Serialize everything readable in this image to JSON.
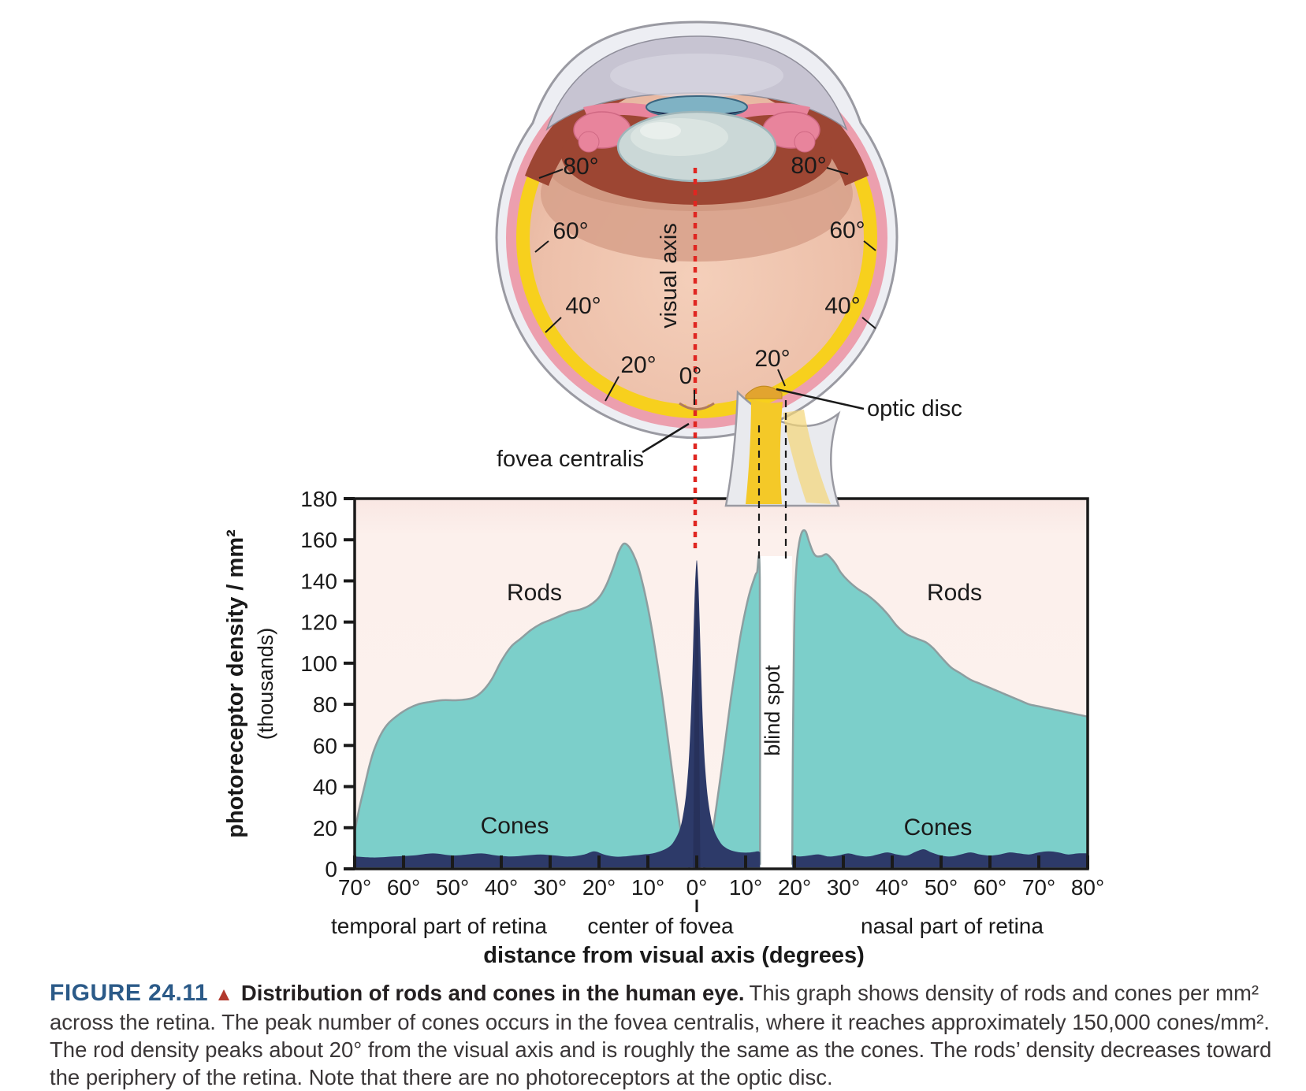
{
  "eye": {
    "visual_axis_label": "visual axis",
    "fovea_label": "fovea centralis",
    "optic_disc_label": "optic disc",
    "degree_labels_left": [
      "80°",
      "60°",
      "40°",
      "20°"
    ],
    "degree_labels_right": [
      "80°",
      "60°",
      "40°",
      "20°"
    ],
    "zero_label": "0°"
  },
  "chart": {
    "y_axis_title": "photoreceptor density / mm²",
    "y_axis_subtitle": "(thousands)",
    "x_axis_title": "distance from visual axis (degrees)",
    "labels": {
      "rods": "Rods",
      "cones": "Cones",
      "blind_spot": "blind spot",
      "temporal": "temporal part of retina",
      "fovea_center": "center of fovea",
      "nasal": "nasal part of retina"
    }
  },
  "chart_data": {
    "type": "area",
    "title": "",
    "xlabel": "distance from visual axis (degrees)",
    "ylabel": "photoreceptor density / mm² (thousands)",
    "x_convention": "degrees; negative = temporal part of retina, positive = nasal part of retina",
    "x_domain_deg": [
      -70,
      80
    ],
    "ylim": [
      0,
      180
    ],
    "grid": false,
    "legend": "inline labels",
    "blind_spot_deg": [
      13,
      19.5
    ],
    "cone_peak": {
      "deg": 0,
      "value_thousands": 150
    },
    "rod_peak_temporal": {
      "deg": -15,
      "value_thousands": 158
    },
    "rod_peak_nasal": {
      "deg": 21.5,
      "value_thousands": 164
    },
    "colors": {
      "rods_fill": "#7ccfca",
      "rods_stroke": "#8d9ea0",
      "cones_fill": "#2d3a69",
      "cone_core_fill": "#27315b",
      "plot_bg_top": "#f9e7e3",
      "plot_bg": "#fcf1ed",
      "blind_spot_band": "#ffffff",
      "visual_axis_line": "#e02621",
      "dashed_guides": "#1a1a1a"
    },
    "axes": {
      "y_ticks": [
        {
          "v": 180,
          "label": "180"
        },
        {
          "v": 160,
          "label": "160"
        },
        {
          "v": 140,
          "label": "140"
        },
        {
          "v": 120,
          "label": "120"
        },
        {
          "v": 100,
          "label": "100"
        },
        {
          "v": 80,
          "label": "80"
        },
        {
          "v": 60,
          "label": "60"
        },
        {
          "v": 40,
          "label": "40"
        },
        {
          "v": 20,
          "label": "20"
        },
        {
          "v": 0,
          "label": "0"
        }
      ],
      "x_ticks": [
        {
          "deg": -70,
          "label": "70°"
        },
        {
          "deg": -60,
          "label": "60°"
        },
        {
          "deg": -50,
          "label": "50°"
        },
        {
          "deg": -40,
          "label": "40°"
        },
        {
          "deg": -30,
          "label": "30°"
        },
        {
          "deg": -20,
          "label": "20°"
        },
        {
          "deg": -10,
          "label": "10°"
        },
        {
          "deg": 0,
          "label": "0°"
        },
        {
          "deg": 10,
          "label": "10°"
        },
        {
          "deg": 20,
          "label": "20°"
        },
        {
          "deg": 30,
          "label": "30°"
        },
        {
          "deg": 40,
          "label": "40°"
        },
        {
          "deg": 50,
          "label": "50°"
        },
        {
          "deg": 60,
          "label": "60°"
        },
        {
          "deg": 70,
          "label": "70°"
        },
        {
          "deg": 80,
          "label": "80°"
        }
      ]
    },
    "series": [
      {
        "name": "Rods (temporal side)",
        "color": "#7ccfca",
        "stroke": "#8d9ea0",
        "points": [
          [
            -70,
            18
          ],
          [
            -69,
            30
          ],
          [
            -68,
            40
          ],
          [
            -67,
            50
          ],
          [
            -66,
            58
          ],
          [
            -64.5,
            66
          ],
          [
            -63,
            71
          ],
          [
            -61,
            75
          ],
          [
            -59,
            78
          ],
          [
            -57,
            80
          ],
          [
            -55,
            81
          ],
          [
            -52,
            82
          ],
          [
            -49,
            82
          ],
          [
            -46,
            83
          ],
          [
            -44,
            86
          ],
          [
            -42,
            92
          ],
          [
            -40,
            101
          ],
          [
            -38,
            108
          ],
          [
            -36,
            112
          ],
          [
            -34,
            116
          ],
          [
            -32,
            119
          ],
          [
            -30,
            121
          ],
          [
            -28,
            123
          ],
          [
            -26,
            125
          ],
          [
            -24,
            126
          ],
          [
            -22,
            128
          ],
          [
            -20,
            132
          ],
          [
            -18.5,
            138
          ],
          [
            -17,
            147
          ],
          [
            -16,
            154
          ],
          [
            -15,
            158
          ],
          [
            -14,
            157
          ],
          [
            -13,
            153
          ],
          [
            -12,
            147
          ],
          [
            -11,
            138
          ],
          [
            -10,
            127
          ],
          [
            -9,
            114
          ],
          [
            -8,
            99
          ],
          [
            -7,
            83
          ],
          [
            -6,
            65
          ],
          [
            -5,
            47
          ],
          [
            -4,
            30
          ],
          [
            -3.2,
            17
          ],
          [
            -2.5,
            8
          ],
          [
            -1.9,
            3
          ],
          [
            -1.4,
            0
          ]
        ]
      },
      {
        "name": "Rods (nasal side, inside blind spot)",
        "color": "#7ccfca",
        "stroke": "#8d9ea0",
        "points": [
          [
            1.4,
            0
          ],
          [
            1.9,
            3
          ],
          [
            2.5,
            8
          ],
          [
            3.2,
            17
          ],
          [
            4,
            30
          ],
          [
            5,
            47
          ],
          [
            6,
            65
          ],
          [
            7,
            83
          ],
          [
            8,
            99
          ],
          [
            9,
            114
          ],
          [
            10,
            126
          ],
          [
            10.8,
            134
          ],
          [
            11.6,
            140
          ],
          [
            12.3,
            144
          ],
          [
            12.9,
            141
          ],
          [
            12.95,
            2
          ]
        ]
      },
      {
        "name": "Rods (nasal side, beyond blind spot)",
        "color": "#7ccfca",
        "stroke": "#8d9ea0",
        "points": [
          [
            19.55,
            2
          ],
          [
            19.65,
            50
          ],
          [
            19.85,
            100
          ],
          [
            20.1,
            132
          ],
          [
            20.5,
            150
          ],
          [
            21,
            159
          ],
          [
            21.6,
            164
          ],
          [
            22.3,
            164
          ],
          [
            23,
            159
          ],
          [
            23.8,
            154
          ],
          [
            24.5,
            152
          ],
          [
            25.5,
            152
          ],
          [
            26.5,
            153
          ],
          [
            27.5,
            151
          ],
          [
            28.5,
            148
          ],
          [
            29.5,
            144
          ],
          [
            31,
            140
          ],
          [
            33,
            136
          ],
          [
            35,
            133
          ],
          [
            37,
            129
          ],
          [
            39,
            124
          ],
          [
            41,
            118
          ],
          [
            43,
            114
          ],
          [
            45,
            112
          ],
          [
            47,
            110
          ],
          [
            48.5,
            107
          ],
          [
            50,
            103
          ],
          [
            52,
            98
          ],
          [
            54,
            95
          ],
          [
            56,
            92
          ],
          [
            58,
            90
          ],
          [
            60,
            88
          ],
          [
            62,
            86
          ],
          [
            64,
            84
          ],
          [
            66,
            82
          ],
          [
            68,
            80
          ],
          [
            70,
            79
          ],
          [
            72,
            78
          ],
          [
            74,
            77
          ],
          [
            76,
            76
          ],
          [
            78,
            75
          ],
          [
            80,
            74
          ]
        ]
      },
      {
        "name": "Cones (temporal + fovea, up to blind spot)",
        "color": "#2d3a69",
        "points": [
          [
            -70,
            6
          ],
          [
            -66,
            5.5
          ],
          [
            -62,
            6
          ],
          [
            -58,
            6.5
          ],
          [
            -54,
            7.5
          ],
          [
            -50,
            6.5
          ],
          [
            -47,
            7
          ],
          [
            -44,
            7.5
          ],
          [
            -41,
            6.5
          ],
          [
            -38,
            6
          ],
          [
            -35,
            6.5
          ],
          [
            -32,
            7
          ],
          [
            -29,
            6.5
          ],
          [
            -26,
            6
          ],
          [
            -23,
            7
          ],
          [
            -21,
            8.5
          ],
          [
            -19,
            7
          ],
          [
            -17,
            6
          ],
          [
            -15,
            6
          ],
          [
            -13,
            6.5
          ],
          [
            -11,
            7
          ],
          [
            -9,
            7.5
          ],
          [
            -7,
            9
          ],
          [
            -5.5,
            11
          ],
          [
            -4.5,
            14
          ],
          [
            -3.5,
            19
          ],
          [
            -2.8,
            26
          ],
          [
            -2.2,
            36
          ],
          [
            -1.7,
            50
          ],
          [
            -1.3,
            68
          ],
          [
            -0.9,
            95
          ],
          [
            -0.6,
            120
          ],
          [
            -0.3,
            140
          ],
          [
            0,
            150
          ],
          [
            0.3,
            140
          ],
          [
            0.6,
            120
          ],
          [
            0.9,
            95
          ],
          [
            1.3,
            68
          ],
          [
            1.7,
            50
          ],
          [
            2.2,
            36
          ],
          [
            2.8,
            26
          ],
          [
            3.5,
            19
          ],
          [
            4.5,
            14
          ],
          [
            5.5,
            11
          ],
          [
            7,
            9
          ],
          [
            9,
            8
          ],
          [
            11,
            8
          ],
          [
            12.5,
            8.5
          ],
          [
            12.95,
            8
          ]
        ]
      },
      {
        "name": "Cones (nasal side, beyond blind spot)",
        "color": "#2d3a69",
        "points": [
          [
            19.55,
            6.5
          ],
          [
            21,
            6
          ],
          [
            23,
            6.5
          ],
          [
            25,
            7
          ],
          [
            27,
            6
          ],
          [
            29,
            6.5
          ],
          [
            31,
            7.5
          ],
          [
            33,
            6.5
          ],
          [
            35,
            6
          ],
          [
            37,
            7
          ],
          [
            39,
            8
          ],
          [
            41,
            7
          ],
          [
            43,
            6.5
          ],
          [
            45,
            8.5
          ],
          [
            46.5,
            9.5
          ],
          [
            48,
            8
          ],
          [
            50,
            6.5
          ],
          [
            52,
            6
          ],
          [
            54,
            7
          ],
          [
            56,
            8
          ],
          [
            58,
            7
          ],
          [
            60,
            6.5
          ],
          [
            62,
            7
          ],
          [
            64,
            8
          ],
          [
            66,
            7.5
          ],
          [
            68,
            7
          ],
          [
            70,
            8
          ],
          [
            72,
            8.5
          ],
          [
            74,
            8
          ],
          [
            76,
            7
          ],
          [
            78,
            7.5
          ],
          [
            80,
            7.5
          ]
        ]
      },
      {
        "name": "Cones (fovea core shading)",
        "color": "#27315b",
        "points": [
          [
            -0.75,
            2
          ],
          [
            0,
            150
          ],
          [
            0.75,
            2
          ]
        ]
      }
    ]
  },
  "caption": {
    "figure_id": "FIGURE 24.11",
    "marker": "▲",
    "title": "Distribution of rods and cones in the human eye.",
    "body": "This graph shows density of rods and cones per mm² across the retina. The peak number of cones occurs in the fovea centralis, where it reaches approximately 150,000 cones/mm². The rod density peaks about 20° from the visual axis and is roughly the same as the cones. The rods’ density decreases toward the periphery of the retina. Note that there are no photoreceptors at the optic disc."
  }
}
